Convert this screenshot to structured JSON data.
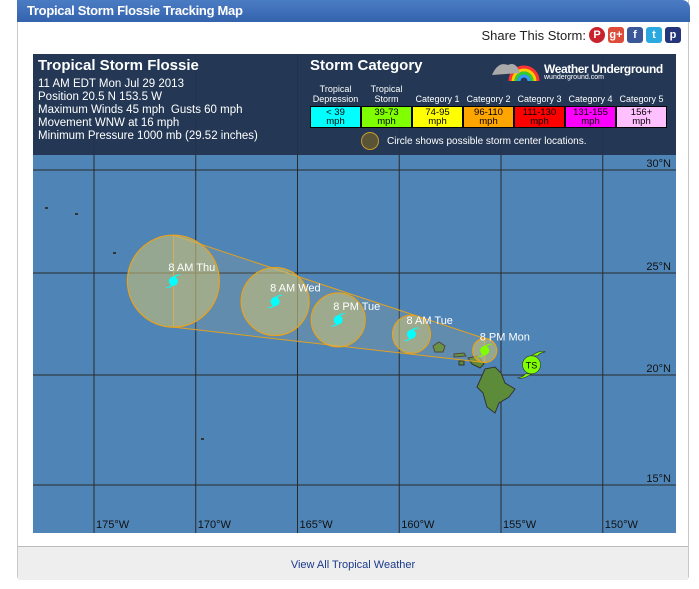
{
  "header": {
    "title": "Tropical Storm Flossie Tracking Map"
  },
  "share": {
    "label": "Share This Storm:",
    "icons": [
      "pinterest-icon",
      "google-plus-icon",
      "facebook-icon",
      "twitter-icon",
      "pinterest-alt-icon"
    ]
  },
  "storm": {
    "name": "Tropical Storm Flossie",
    "lines": [
      "11 AM EDT Mon Jul 29 2013",
      "Position 20.5 N 153.5 W",
      "Maximum Winds 45 mph  Gusts 60 mph",
      "Movement WNW at 16 mph",
      "Minimum Pressure 1000 mb (29.52 inches)"
    ]
  },
  "legend": {
    "title": "Storm Category",
    "note": "Circle shows possible storm center locations.",
    "categories": [
      {
        "name": "Tropical Depression",
        "range": "< 39",
        "unit": "mph",
        "color": "#00ffff"
      },
      {
        "name": "Tropical Storm",
        "range": "39-73",
        "unit": "mph",
        "color": "#80ff00"
      },
      {
        "name": "Category 1",
        "range": "74-95",
        "unit": "mph",
        "color": "#ffff00"
      },
      {
        "name": "Category 2",
        "range": "96-110",
        "unit": "mph",
        "color": "#ffa500"
      },
      {
        "name": "Category 3",
        "range": "111-130",
        "unit": "mph",
        "color": "#ff0000"
      },
      {
        "name": "Category 4",
        "range": "131-155",
        "unit": "mph",
        "color": "#ff00ff"
      },
      {
        "name": "Category 5",
        "range": "156+",
        "unit": "mph",
        "color": "#ffc0ff"
      }
    ]
  },
  "logo": {
    "name": "Weather Underground",
    "url_text": "wunderground.com"
  },
  "map": {
    "lon_labels": [
      "175°W",
      "170°W",
      "165°W",
      "160°W",
      "155°W",
      "150°W"
    ],
    "lat_labels": [
      "30°N",
      "25°N",
      "20°N",
      "15°N"
    ],
    "current": {
      "lat": 20.5,
      "lon": 153.5,
      "badge": "TS",
      "color": "#80ff00"
    },
    "forecast": [
      {
        "label": "8 PM Mon",
        "lat": 21.2,
        "lon": 155.8,
        "color": "#80ff00"
      },
      {
        "label": "8 AM Tue",
        "lat": 22.0,
        "lon": 159.4,
        "color": "#00ffff"
      },
      {
        "label": "8 PM Tue",
        "lat": 22.7,
        "lon": 163.0,
        "color": "#00ffff"
      },
      {
        "label": "8 AM Wed",
        "lat": 23.6,
        "lon": 166.1,
        "color": "#00ffff"
      },
      {
        "label": "8 AM Thu",
        "lat": 24.6,
        "lon": 171.1,
        "color": "#00ffff"
      }
    ]
  },
  "footer": {
    "link": "View All Tropical Weather"
  }
}
